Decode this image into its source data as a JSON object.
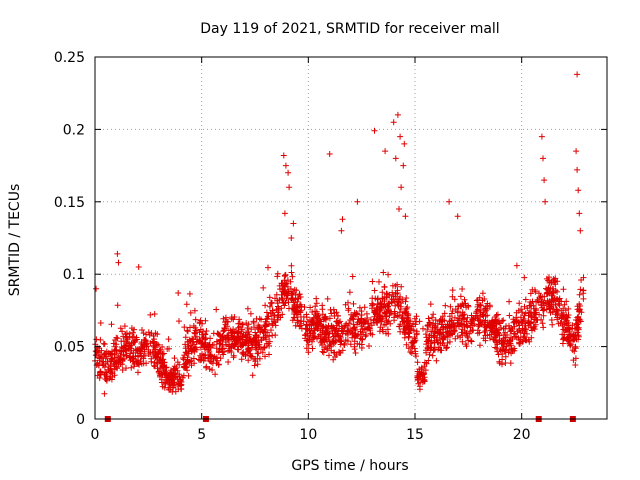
{
  "chart_data": {
    "type": "scatter",
    "title": "Day 119 of 2021, SRMTID for receiver mall",
    "xlabel": "GPS time / hours",
    "ylabel": "SRMTID / TECUs",
    "xlim": [
      0,
      24
    ],
    "ylim": [
      0,
      0.25
    ],
    "x_ticks": [
      0,
      5,
      10,
      15,
      20
    ],
    "x_tick_labels": [
      "0",
      "5",
      "10",
      "15",
      "20"
    ],
    "y_ticks": [
      0,
      0.05,
      0.1,
      0.15,
      0.2,
      0.25
    ],
    "y_tick_labels": [
      "0",
      "0.05",
      "0.1",
      "0.15",
      "0.2",
      "0.25"
    ],
    "grid": true,
    "marker": "+",
    "series_color": "#e00000",
    "data_gap_markers_x": [
      0.6,
      5.2,
      20.8,
      22.4
    ],
    "baseline_profile": {
      "x": [
        0,
        0.5,
        1,
        1.5,
        2,
        2.5,
        3,
        3.5,
        4,
        4.5,
        5,
        5.5,
        6,
        6.5,
        7,
        7.5,
        8,
        8.5,
        9,
        9.5,
        10,
        10.5,
        11,
        11.5,
        12,
        12.5,
        13,
        13.5,
        14,
        14.5,
        15,
        15.5,
        16,
        16.5,
        17,
        17.5,
        18,
        18.5,
        19,
        19.5,
        20,
        20.5,
        21,
        21.5,
        22,
        22.5,
        22.9
      ],
      "y": [
        0.045,
        0.035,
        0.04,
        0.05,
        0.045,
        0.055,
        0.04,
        0.03,
        0.035,
        0.05,
        0.055,
        0.045,
        0.055,
        0.06,
        0.055,
        0.05,
        0.06,
        0.075,
        0.09,
        0.075,
        0.06,
        0.065,
        0.055,
        0.06,
        0.065,
        0.06,
        0.07,
        0.075,
        0.08,
        0.07,
        0.055,
        0.05,
        0.06,
        0.06,
        0.07,
        0.065,
        0.07,
        0.065,
        0.055,
        0.055,
        0.065,
        0.07,
        0.08,
        0.085,
        0.065,
        0.055,
        0.09
      ]
    },
    "scatter_spread": 0.022,
    "point_density_per_hour": 95,
    "spikes": [
      {
        "x": 0.05,
        "y": 0.09
      },
      {
        "x": 1.05,
        "y": 0.114
      },
      {
        "x": 1.1,
        "y": 0.108
      },
      {
        "x": 2.05,
        "y": 0.105
      },
      {
        "x": 3.9,
        "y": 0.087
      },
      {
        "x": 8.85,
        "y": 0.182
      },
      {
        "x": 8.95,
        "y": 0.175
      },
      {
        "x": 9.05,
        "y": 0.17
      },
      {
        "x": 9.1,
        "y": 0.16
      },
      {
        "x": 8.9,
        "y": 0.142
      },
      {
        "x": 9.3,
        "y": 0.135
      },
      {
        "x": 9.2,
        "y": 0.125
      },
      {
        "x": 11.0,
        "y": 0.183
      },
      {
        "x": 11.6,
        "y": 0.138
      },
      {
        "x": 11.55,
        "y": 0.13
      },
      {
        "x": 12.3,
        "y": 0.15
      },
      {
        "x": 13.1,
        "y": 0.199
      },
      {
        "x": 13.6,
        "y": 0.185
      },
      {
        "x": 14.0,
        "y": 0.205
      },
      {
        "x": 14.2,
        "y": 0.21
      },
      {
        "x": 14.1,
        "y": 0.18
      },
      {
        "x": 14.3,
        "y": 0.195
      },
      {
        "x": 14.5,
        "y": 0.19
      },
      {
        "x": 14.45,
        "y": 0.175
      },
      {
        "x": 14.35,
        "y": 0.16
      },
      {
        "x": 14.25,
        "y": 0.145
      },
      {
        "x": 14.55,
        "y": 0.14
      },
      {
        "x": 16.6,
        "y": 0.15
      },
      {
        "x": 17.0,
        "y": 0.14
      },
      {
        "x": 20.95,
        "y": 0.195
      },
      {
        "x": 21.0,
        "y": 0.18
      },
      {
        "x": 21.05,
        "y": 0.165
      },
      {
        "x": 21.1,
        "y": 0.15
      },
      {
        "x": 22.6,
        "y": 0.238
      },
      {
        "x": 22.55,
        "y": 0.185
      },
      {
        "x": 22.6,
        "y": 0.172
      },
      {
        "x": 22.65,
        "y": 0.158
      },
      {
        "x": 22.7,
        "y": 0.142
      },
      {
        "x": 22.75,
        "y": 0.13
      }
    ],
    "quiet_periods": [
      {
        "x_start": 3.3,
        "x_end": 4.1,
        "y_center": 0.028
      },
      {
        "x_start": 15.1,
        "x_end": 15.5,
        "y_center": 0.03
      }
    ]
  }
}
